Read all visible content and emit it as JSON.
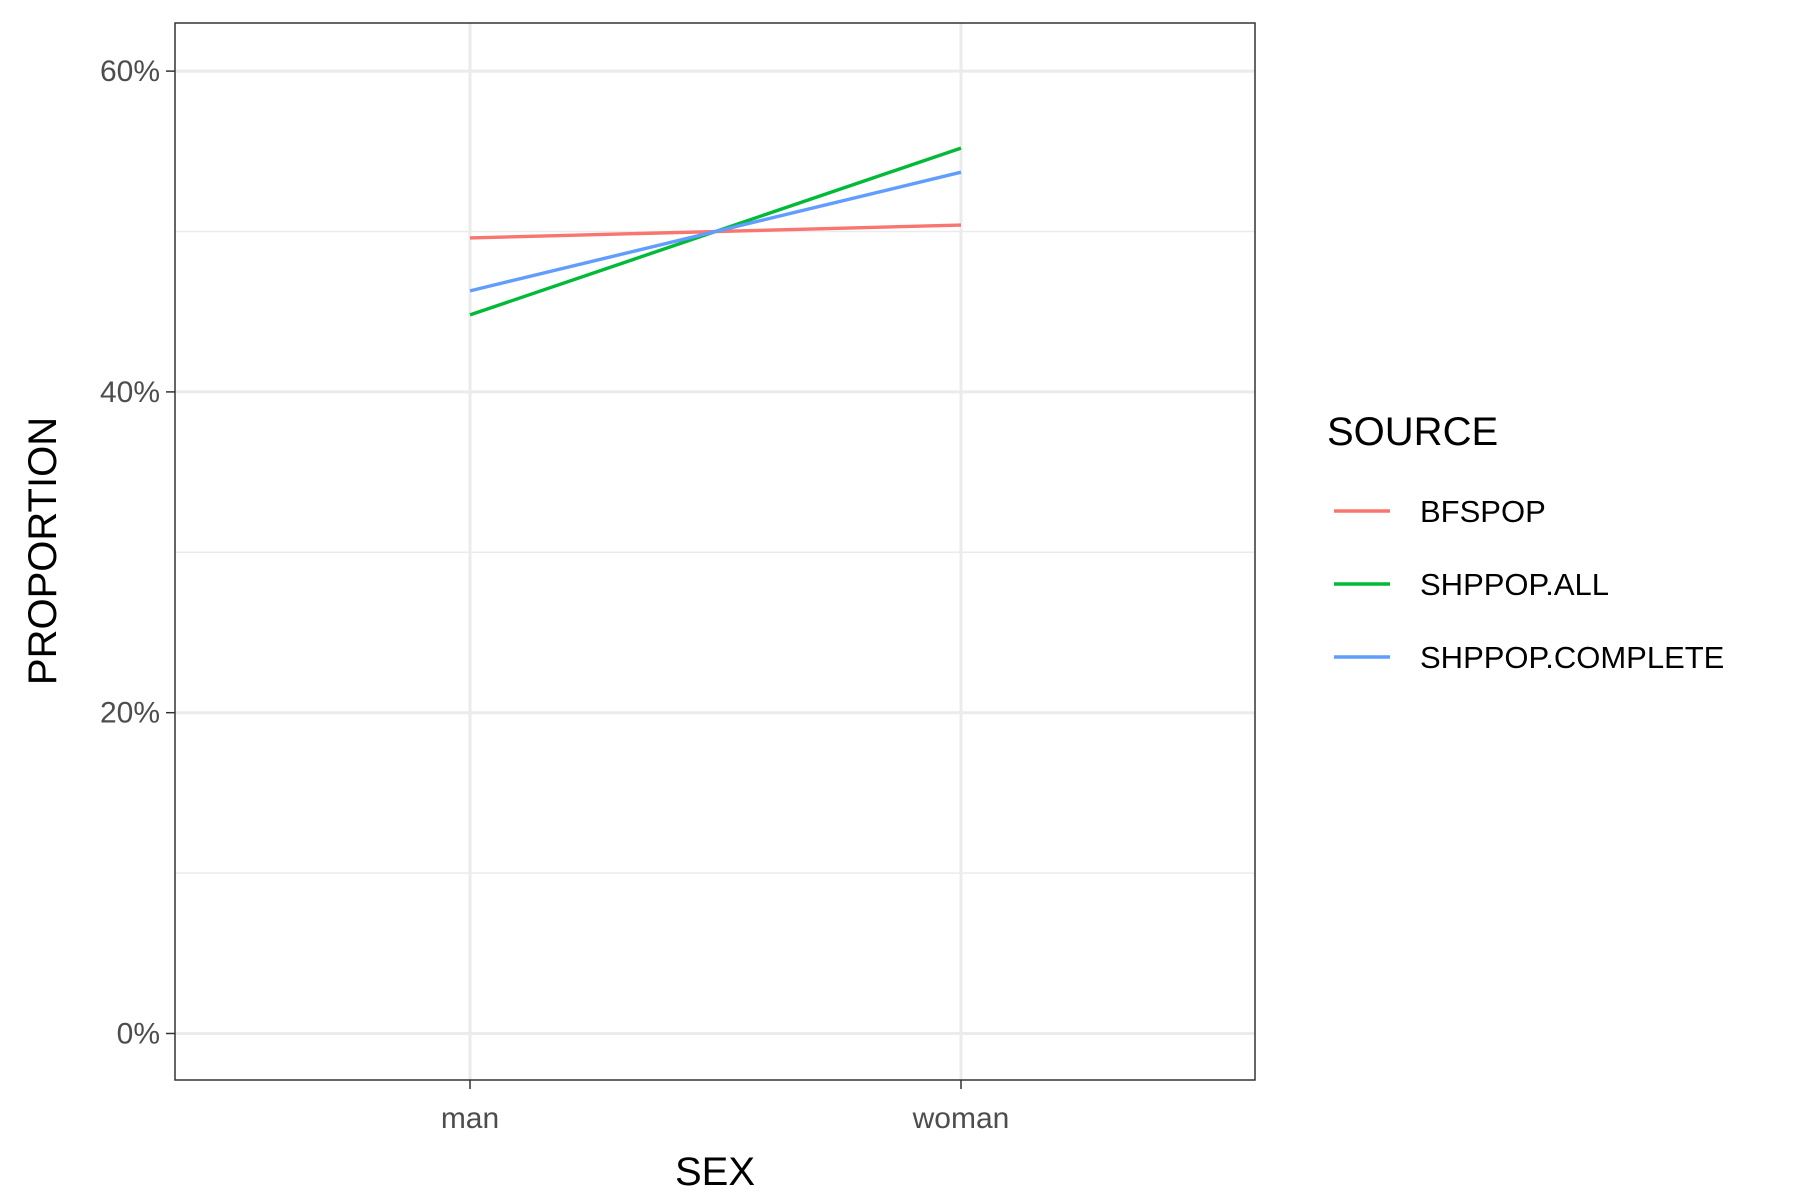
{
  "chart_data": {
    "type": "line",
    "categories": [
      "man",
      "woman"
    ],
    "xlabel": "SEX",
    "ylabel": "PROPORTION",
    "ylim": [
      -0.029,
      0.63
    ],
    "y_ticks": [
      0,
      0.2,
      0.4,
      0.6
    ],
    "y_tick_labels": [
      "0%",
      "20%",
      "40%",
      "60%"
    ],
    "y_minor_ticks": [
      0.1,
      0.3,
      0.5
    ],
    "grid": true,
    "legend": {
      "title": "SOURCE",
      "position": "right"
    },
    "series": [
      {
        "name": "BFSPOP",
        "values": [
          0.496,
          0.504
        ],
        "color": "#F8766D"
      },
      {
        "name": "SHPPOP.ALL",
        "values": [
          0.448,
          0.552
        ],
        "color": "#00BA38"
      },
      {
        "name": "SHPPOP.COMPLETE",
        "values": [
          0.463,
          0.537
        ],
        "color": "#619CFF"
      }
    ]
  }
}
